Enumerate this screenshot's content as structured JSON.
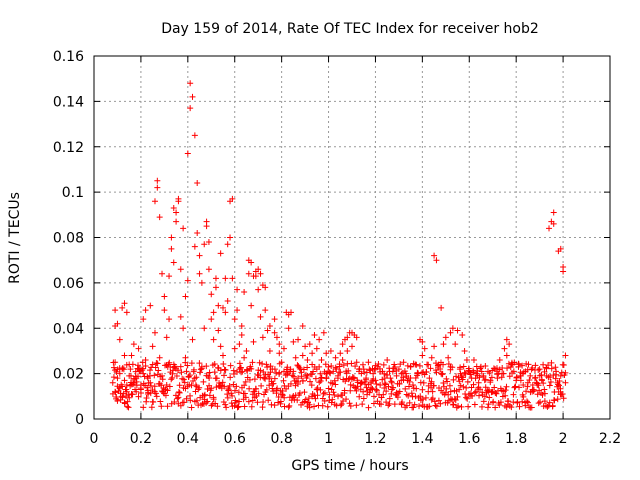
{
  "chart_data": {
    "type": "scatter",
    "title": "Day 159 of 2014, Rate Of TEC Index for receiver hob2",
    "xlabel": "GPS time / hours",
    "ylabel": "ROTI / TECUs",
    "xlim": [
      0,
      2.2
    ],
    "ylim": [
      0,
      0.16
    ],
    "xticks": [
      0,
      0.2,
      0.4,
      0.6,
      0.8,
      1.0,
      1.2,
      1.4,
      1.6,
      1.8,
      2.0,
      2.2
    ],
    "xtick_labels": [
      "0",
      "0.2",
      "0.4",
      "0.6",
      "0.8",
      "1",
      "1.2",
      "1.4",
      "1.6",
      "1.8",
      "2",
      "2.2"
    ],
    "yticks": [
      0,
      0.02,
      0.04,
      0.06,
      0.08,
      0.1,
      0.12,
      0.14,
      0.16
    ],
    "ytick_labels": [
      "0",
      "0.02",
      "0.04",
      "0.06",
      "0.08",
      "0.1",
      "0.12",
      "0.14",
      "0.16"
    ],
    "grid": true,
    "marker": "+",
    "marker_color": "#ff0000",
    "series": [
      {
        "name": "hob2",
        "points": [
          [
            0.08,
            0.016
          ],
          [
            0.09,
            0.012
          ],
          [
            0.09,
            0.025
          ],
          [
            0.09,
            0.041
          ],
          [
            0.09,
            0.048
          ],
          [
            0.1,
            0.018
          ],
          [
            0.1,
            0.008
          ],
          [
            0.1,
            0.042
          ],
          [
            0.11,
            0.02
          ],
          [
            0.11,
            0.014
          ],
          [
            0.11,
            0.035
          ],
          [
            0.12,
            0.022
          ],
          [
            0.12,
            0.049
          ],
          [
            0.12,
            0.01
          ],
          [
            0.13,
            0.051
          ],
          [
            0.13,
            0.017
          ],
          [
            0.13,
            0.028
          ],
          [
            0.14,
            0.047
          ],
          [
            0.14,
            0.015
          ],
          [
            0.14,
            0.012
          ],
          [
            0.15,
            0.024
          ],
          [
            0.15,
            0.019
          ],
          [
            0.16,
            0.011
          ],
          [
            0.16,
            0.028
          ],
          [
            0.17,
            0.016
          ],
          [
            0.17,
            0.033
          ],
          [
            0.18,
            0.018
          ],
          [
            0.18,
            0.012
          ],
          [
            0.19,
            0.022
          ],
          [
            0.19,
            0.031
          ],
          [
            0.2,
            0.013
          ],
          [
            0.2,
            0.015
          ],
          [
            0.21,
            0.02
          ],
          [
            0.21,
            0.044
          ],
          [
            0.22,
            0.048
          ],
          [
            0.22,
            0.026
          ],
          [
            0.23,
            0.018
          ],
          [
            0.23,
            0.011
          ],
          [
            0.24,
            0.016
          ],
          [
            0.24,
            0.05
          ],
          [
            0.25,
            0.024
          ],
          [
            0.25,
            0.032
          ],
          [
            0.26,
            0.038
          ],
          [
            0.26,
            0.096
          ],
          [
            0.27,
            0.105
          ],
          [
            0.27,
            0.102
          ],
          [
            0.28,
            0.089
          ],
          [
            0.28,
            0.027
          ],
          [
            0.29,
            0.064
          ],
          [
            0.29,
            0.019
          ],
          [
            0.3,
            0.054
          ],
          [
            0.3,
            0.048
          ],
          [
            0.31,
            0.036
          ],
          [
            0.31,
            0.015
          ],
          [
            0.32,
            0.063
          ],
          [
            0.32,
            0.044
          ],
          [
            0.33,
            0.075
          ],
          [
            0.33,
            0.08
          ],
          [
            0.34,
            0.069
          ],
          [
            0.34,
            0.093
          ],
          [
            0.35,
            0.091
          ],
          [
            0.35,
            0.087
          ],
          [
            0.36,
            0.097
          ],
          [
            0.36,
            0.096
          ],
          [
            0.37,
            0.066
          ],
          [
            0.37,
            0.045
          ],
          [
            0.38,
            0.084
          ],
          [
            0.38,
            0.04
          ],
          [
            0.39,
            0.054
          ],
          [
            0.39,
            0.027
          ],
          [
            0.4,
            0.117
          ],
          [
            0.4,
            0.061
          ],
          [
            0.41,
            0.137
          ],
          [
            0.41,
            0.148
          ],
          [
            0.42,
            0.142
          ],
          [
            0.42,
            0.035
          ],
          [
            0.43,
            0.125
          ],
          [
            0.43,
            0.076
          ],
          [
            0.44,
            0.104
          ],
          [
            0.44,
            0.082
          ],
          [
            0.45,
            0.072
          ],
          [
            0.45,
            0.064
          ],
          [
            0.46,
            0.06
          ],
          [
            0.46,
            0.023
          ],
          [
            0.47,
            0.077
          ],
          [
            0.47,
            0.04
          ],
          [
            0.48,
            0.087
          ],
          [
            0.48,
            0.085
          ],
          [
            0.49,
            0.066
          ],
          [
            0.49,
            0.078
          ],
          [
            0.5,
            0.055
          ],
          [
            0.5,
            0.044
          ],
          [
            0.51,
            0.047
          ],
          [
            0.51,
            0.035
          ],
          [
            0.52,
            0.062
          ],
          [
            0.52,
            0.058
          ],
          [
            0.53,
            0.05
          ],
          [
            0.53,
            0.039
          ],
          [
            0.54,
            0.073
          ],
          [
            0.54,
            0.032
          ],
          [
            0.55,
            0.049
          ],
          [
            0.55,
            0.028
          ],
          [
            0.56,
            0.062
          ],
          [
            0.56,
            0.047
          ],
          [
            0.57,
            0.077
          ],
          [
            0.57,
            0.052
          ],
          [
            0.58,
            0.096
          ],
          [
            0.58,
            0.08
          ],
          [
            0.59,
            0.097
          ],
          [
            0.59,
            0.062
          ],
          [
            0.6,
            0.044
          ],
          [
            0.6,
            0.031
          ],
          [
            0.61,
            0.057
          ],
          [
            0.61,
            0.048
          ],
          [
            0.62,
            0.033
          ],
          [
            0.62,
            0.022
          ],
          [
            0.63,
            0.041
          ],
          [
            0.63,
            0.037
          ],
          [
            0.64,
            0.056
          ],
          [
            0.64,
            0.027
          ],
          [
            0.65,
            0.03
          ],
          [
            0.66,
            0.064
          ],
          [
            0.66,
            0.07
          ],
          [
            0.67,
            0.069
          ],
          [
            0.67,
            0.05
          ],
          [
            0.68,
            0.063
          ],
          [
            0.68,
            0.034
          ],
          [
            0.69,
            0.063
          ],
          [
            0.69,
            0.065
          ],
          [
            0.7,
            0.066
          ],
          [
            0.7,
            0.057
          ],
          [
            0.71,
            0.064
          ],
          [
            0.71,
            0.045
          ],
          [
            0.72,
            0.059
          ],
          [
            0.72,
            0.036
          ],
          [
            0.73,
            0.058
          ],
          [
            0.73,
            0.048
          ],
          [
            0.74,
            0.039
          ],
          [
            0.75,
            0.03
          ],
          [
            0.75,
            0.041
          ],
          [
            0.76,
            0.022
          ],
          [
            0.77,
            0.038
          ],
          [
            0.77,
            0.044
          ],
          [
            0.78,
            0.036
          ],
          [
            0.79,
            0.029
          ],
          [
            0.79,
            0.033
          ],
          [
            0.8,
            0.025
          ],
          [
            0.81,
            0.031
          ],
          [
            0.81,
            0.021
          ],
          [
            0.82,
            0.047
          ],
          [
            0.83,
            0.046
          ],
          [
            0.83,
            0.04
          ],
          [
            0.84,
            0.047
          ],
          [
            0.85,
            0.034
          ],
          [
            0.85,
            0.021
          ],
          [
            0.86,
            0.027
          ],
          [
            0.87,
            0.018
          ],
          [
            0.87,
            0.035
          ],
          [
            0.88,
            0.022
          ],
          [
            0.89,
            0.028
          ],
          [
            0.89,
            0.041
          ],
          [
            0.9,
            0.032
          ],
          [
            0.91,
            0.026
          ],
          [
            0.91,
            0.019
          ],
          [
            0.92,
            0.033
          ],
          [
            0.93,
            0.029
          ],
          [
            0.93,
            0.024
          ],
          [
            0.94,
            0.037
          ],
          [
            0.95,
            0.031
          ],
          [
            0.95,
            0.022
          ],
          [
            0.96,
            0.035
          ],
          [
            0.97,
            0.026
          ],
          [
            0.97,
            0.018
          ],
          [
            0.98,
            0.038
          ],
          [
            0.99,
            0.02
          ],
          [
            0.99,
            0.029
          ],
          [
            1.0,
            0.023
          ],
          [
            1.01,
            0.016
          ],
          [
            1.01,
            0.03
          ],
          [
            1.02,
            0.021
          ],
          [
            1.03,
            0.027
          ],
          [
            1.04,
            0.019
          ],
          [
            1.05,
            0.029
          ],
          [
            1.06,
            0.033
          ],
          [
            1.06,
            0.026
          ],
          [
            1.07,
            0.035
          ],
          [
            1.08,
            0.036
          ],
          [
            1.08,
            0.03
          ],
          [
            1.09,
            0.038
          ],
          [
            1.1,
            0.038
          ],
          [
            1.1,
            0.032
          ],
          [
            1.11,
            0.037
          ],
          [
            1.12,
            0.025
          ],
          [
            1.12,
            0.036
          ],
          [
            1.13,
            0.021
          ],
          [
            1.14,
            0.016
          ],
          [
            1.15,
            0.022
          ],
          [
            1.16,
            0.018
          ],
          [
            1.17,
            0.025
          ],
          [
            1.18,
            0.013
          ],
          [
            1.19,
            0.02
          ],
          [
            1.2,
            0.017
          ],
          [
            1.21,
            0.023
          ],
          [
            1.22,
            0.015
          ],
          [
            1.23,
            0.021
          ],
          [
            1.24,
            0.018
          ],
          [
            1.25,
            0.026
          ],
          [
            1.26,
            0.021
          ],
          [
            1.27,
            0.016
          ],
          [
            1.28,
            0.024
          ],
          [
            1.29,
            0.019
          ],
          [
            1.3,
            0.022
          ],
          [
            1.31,
            0.017
          ],
          [
            1.32,
            0.025
          ],
          [
            1.33,
            0.02
          ],
          [
            1.34,
            0.018
          ],
          [
            1.35,
            0.023
          ],
          [
            1.36,
            0.015
          ],
          [
            1.37,
            0.024
          ],
          [
            1.38,
            0.02
          ],
          [
            1.39,
            0.035
          ],
          [
            1.4,
            0.034
          ],
          [
            1.4,
            0.028
          ],
          [
            1.41,
            0.031
          ],
          [
            1.42,
            0.024
          ],
          [
            1.43,
            0.018
          ],
          [
            1.44,
            0.027
          ],
          [
            1.45,
            0.032
          ],
          [
            1.45,
            0.072
          ],
          [
            1.46,
            0.07
          ],
          [
            1.47,
            0.024
          ],
          [
            1.48,
            0.049
          ],
          [
            1.48,
            0.02
          ],
          [
            1.49,
            0.033
          ],
          [
            1.5,
            0.036
          ],
          [
            1.51,
            0.027
          ],
          [
            1.52,
            0.038
          ],
          [
            1.52,
            0.023
          ],
          [
            1.53,
            0.04
          ],
          [
            1.54,
            0.033
          ],
          [
            1.55,
            0.039
          ],
          [
            1.56,
            0.022
          ],
          [
            1.57,
            0.037
          ],
          [
            1.58,
            0.03
          ],
          [
            1.59,
            0.026
          ],
          [
            1.6,
            0.021
          ],
          [
            1.61,
            0.018
          ],
          [
            1.62,
            0.026
          ],
          [
            1.63,
            0.02
          ],
          [
            1.64,
            0.016
          ],
          [
            1.65,
            0.023
          ],
          [
            1.66,
            0.019
          ],
          [
            1.67,
            0.014
          ],
          [
            1.68,
            0.021
          ],
          [
            1.69,
            0.017
          ],
          [
            1.7,
            0.012
          ],
          [
            1.71,
            0.022
          ],
          [
            1.72,
            0.018
          ],
          [
            1.73,
            0.026
          ],
          [
            1.74,
            0.02
          ],
          [
            1.75,
            0.031
          ],
          [
            1.76,
            0.035
          ],
          [
            1.76,
            0.028
          ],
          [
            1.77,
            0.033
          ],
          [
            1.78,
            0.024
          ],
          [
            1.79,
            0.021
          ],
          [
            1.8,
            0.017
          ],
          [
            1.81,
            0.023
          ],
          [
            1.82,
            0.019
          ],
          [
            1.83,
            0.015
          ],
          [
            1.84,
            0.021
          ],
          [
            1.85,
            0.016
          ],
          [
            1.86,
            0.019
          ],
          [
            1.87,
            0.013
          ],
          [
            1.88,
            0.018
          ],
          [
            1.89,
            0.015
          ],
          [
            1.9,
            0.022
          ],
          [
            1.91,
            0.017
          ],
          [
            1.92,
            0.013
          ],
          [
            1.93,
            0.019
          ],
          [
            1.94,
            0.084
          ],
          [
            1.95,
            0.087
          ],
          [
            1.96,
            0.091
          ],
          [
            1.96,
            0.086
          ],
          [
            1.97,
            0.021
          ],
          [
            1.98,
            0.074
          ],
          [
            1.99,
            0.075
          ],
          [
            1.99,
            0.019
          ],
          [
            2.0,
            0.067
          ],
          [
            2.0,
            0.065
          ],
          [
            2.01,
            0.028
          ],
          [
            2.01,
            0.016
          ]
        ],
        "baseline_band": {
          "x_range": [
            0.08,
            2.01
          ],
          "y_range": [
            0.005,
            0.025
          ]
        }
      }
    ]
  }
}
